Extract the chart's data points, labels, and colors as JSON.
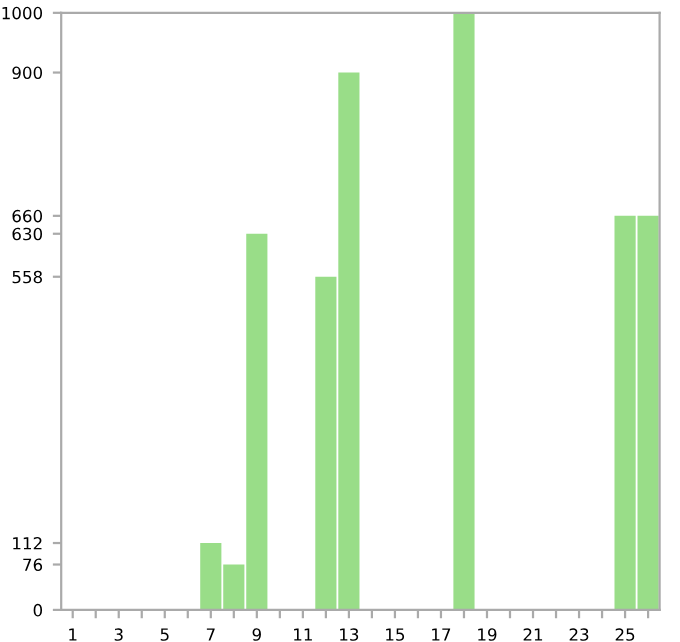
{
  "chart_data": {
    "type": "bar",
    "categories": [
      "1",
      null,
      "3",
      null,
      "5",
      null,
      "7",
      null,
      "9",
      null,
      "11",
      null,
      "13",
      null,
      "15",
      null,
      "17",
      null,
      "19",
      null,
      "21",
      null,
      "23",
      null,
      "25",
      null
    ],
    "values": [
      0,
      0,
      0,
      0,
      0,
      0,
      112,
      76,
      630,
      0,
      0,
      558,
      900,
      0,
      0,
      0,
      0,
      1000,
      0,
      0,
      0,
      0,
      0,
      0,
      660,
      660
    ],
    "color": "#99dd88",
    "ylim": [
      0,
      1000
    ],
    "yticks": [
      0,
      76,
      112,
      558,
      630,
      660,
      900,
      1000
    ],
    "grid": false
  }
}
